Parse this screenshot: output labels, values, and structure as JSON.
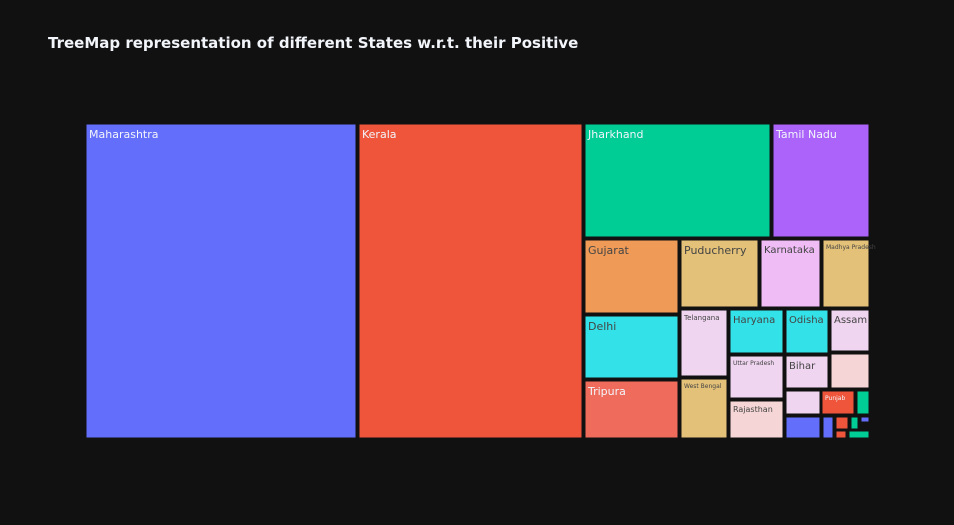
{
  "chart_data": {
    "type": "treemap",
    "title": "TreeMap representation of different States w.r.t. their Positive",
    "items": [
      {
        "name": "Maharashtra",
        "value": 1000,
        "color": "#636efa"
      },
      {
        "name": "Kerala",
        "value": 808,
        "color": "#ef553b"
      },
      {
        "name": "Jharkhand",
        "value": 344,
        "color": "#00cc96"
      },
      {
        "name": "Tamil Nadu",
        "value": 176,
        "color": "#ab63fa"
      },
      {
        "name": "Gujarat",
        "value": 94,
        "color": "#ef9b57"
      },
      {
        "name": "Puducherry",
        "value": 87,
        "color": "#e3c178"
      },
      {
        "name": "Karnataka",
        "value": 71,
        "color": "#efbcf5"
      },
      {
        "name": "Madhya Pradesh",
        "value": 58,
        "color": "#e3c178"
      },
      {
        "name": "Delhi",
        "value": 87,
        "color": "#33e2e8"
      },
      {
        "name": "Tripura",
        "value": 87,
        "color": "#ef6b5b"
      },
      {
        "name": "Telangana",
        "value": 57,
        "color": "#f0d5f0"
      },
      {
        "name": "West Bengal",
        "value": 45,
        "color": "#e3c178"
      },
      {
        "name": "Haryana",
        "value": 28,
        "color": "#33e2e8"
      },
      {
        "name": "Uttar Pradesh",
        "value": 22,
        "color": "#f0d5f0"
      },
      {
        "name": "Rajasthan",
        "value": 19,
        "color": "#f5d5d5"
      },
      {
        "name": "Odisha",
        "value": 19,
        "color": "#33e2e8"
      },
      {
        "name": "Assam",
        "value": 15,
        "color": "#f0d5f0"
      },
      {
        "name": "Bihar",
        "value": 15,
        "color": "#f0d5f0"
      },
      {
        "name": "Punjab",
        "value": 6,
        "color": "#ef553b"
      }
    ],
    "small_tiles": [
      {
        "value": 13,
        "color": "#f5d5d5"
      },
      {
        "value": 13,
        "color": "#f0d5f0"
      },
      {
        "value": 6,
        "color": "#00cc96"
      },
      {
        "value": 9,
        "color": "#636efa"
      },
      {
        "value": 2,
        "color": "#636efa"
      },
      {
        "value": 2,
        "color": "#ef553b"
      },
      {
        "value": 2,
        "color": "#00cc96"
      },
      {
        "value": 1,
        "color": "#636efa"
      },
      {
        "value": 1,
        "color": "#ef553b"
      },
      {
        "value": 1,
        "color": "#00cc96"
      }
    ],
    "background_color": "#111111",
    "title_color": "#f2f5fa"
  }
}
